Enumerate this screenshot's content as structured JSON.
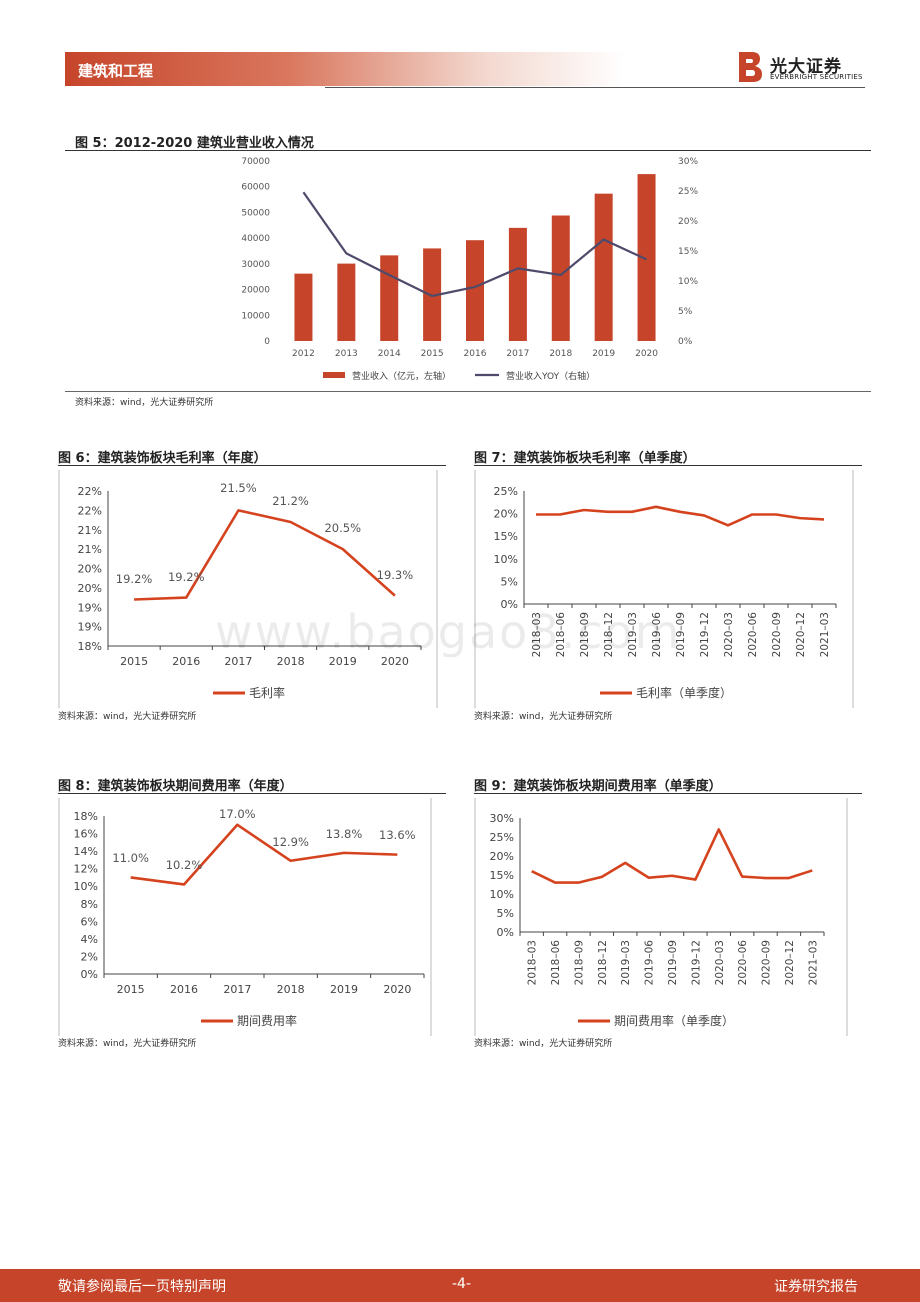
{
  "header": {
    "section": "建筑和工程",
    "brand_cn": "光大证券",
    "brand_en": "EVERBRIGHT SECURITIES"
  },
  "watermark": "www.baogao8.com",
  "fig5": {
    "title": "图 5：2012-2020  建筑业营业收入情况",
    "source": "资料来源：wind，光大证券研究所"
  },
  "fig6": {
    "title": "图 6：建筑装饰板块毛利率（年度）",
    "source": "资料来源：wind，光大证券研究所"
  },
  "fig7": {
    "title": "图 7：建筑装饰板块毛利率（单季度）",
    "source": "资料来源：wind，光大证券研究所"
  },
  "fig8": {
    "title": "图 8：建筑装饰板块期间费用率（年度）",
    "source": "资料来源：wind，光大证券研究所"
  },
  "fig9": {
    "title": "图 9：建筑装饰板块期间费用率（单季度）",
    "source": "资料来源：wind，光大证券研究所"
  },
  "footer": {
    "left": "敬请参阅最后一页特别声明",
    "page": "-4-",
    "right": "证券研究报告"
  },
  "colors": {
    "bar": "#c6452a",
    "line_dark": "#4e4a6b",
    "line_red": "#d5431e"
  },
  "chart_data": [
    {
      "id": "fig5",
      "type": "bar",
      "categories": [
        "2012",
        "2013",
        "2014",
        "2015",
        "2016",
        "2017",
        "2018",
        "2019",
        "2020"
      ],
      "series": [
        {
          "name": "营业收入（亿元，左轴）",
          "type": "bar",
          "axis": "left",
          "values": [
            26200,
            30100,
            33300,
            36000,
            39200,
            44000,
            48800,
            57300,
            64900
          ]
        },
        {
          "name": "营业收入YOY（右轴）",
          "type": "line",
          "axis": "right",
          "values": [
            24.8,
            14.6,
            11.0,
            7.5,
            9.0,
            12.1,
            11.0,
            16.9,
            13.6
          ]
        }
      ],
      "y_left": {
        "min": 0,
        "max": 70000,
        "ticks": [
          "0",
          "10000",
          "20000",
          "30000",
          "40000",
          "50000",
          "60000",
          "70000"
        ]
      },
      "y_right": {
        "min": 0,
        "max": 30,
        "ticks": [
          "0%",
          "5%",
          "10%",
          "15%",
          "20%",
          "25%",
          "30%"
        ]
      },
      "legend": [
        "营业收入（亿元，左轴）",
        "营业收入YOY（右轴）"
      ]
    },
    {
      "id": "fig6",
      "type": "line",
      "categories": [
        "2015",
        "2016",
        "2017",
        "2018",
        "2019",
        "2020"
      ],
      "series": [
        {
          "name": "毛利率",
          "values": [
            19.2,
            19.25,
            21.5,
            21.2,
            20.5,
            19.3
          ],
          "labels": [
            "19.2%",
            "19.2%",
            "21.5%",
            "21.2%",
            "20.5%",
            "19.3%"
          ]
        }
      ],
      "y": {
        "min": 18,
        "max": 22,
        "ticks": [
          "18%",
          "19%",
          "19%",
          "20%",
          "20%",
          "21%",
          "21%",
          "22%",
          "22%"
        ]
      },
      "legend": [
        "毛利率"
      ]
    },
    {
      "id": "fig7",
      "type": "line",
      "categories": [
        "2018–03",
        "2018–06",
        "2018–09",
        "2018–12",
        "2019–03",
        "2019–06",
        "2019–09",
        "2019–12",
        "2020–03",
        "2020–06",
        "2020–09",
        "2020–12",
        "2021–03"
      ],
      "series": [
        {
          "name": "毛利率（单季度）",
          "values": [
            19.8,
            19.8,
            20.8,
            20.4,
            20.4,
            21.5,
            20.4,
            19.6,
            17.4,
            19.8,
            19.8,
            19.0,
            18.7
          ]
        }
      ],
      "y": {
        "min": 0,
        "max": 25,
        "ticks": [
          "0%",
          "5%",
          "10%",
          "15%",
          "20%",
          "25%"
        ]
      },
      "legend": [
        "毛利率（单季度）"
      ]
    },
    {
      "id": "fig8",
      "type": "line",
      "categories": [
        "2015",
        "2016",
        "2017",
        "2018",
        "2019",
        "2020"
      ],
      "series": [
        {
          "name": "期间费用率",
          "values": [
            11.0,
            10.2,
            17.0,
            12.9,
            13.8,
            13.6
          ],
          "labels": [
            "11.0%",
            "10.2%",
            "17.0%",
            "12.9%",
            "13.8%",
            "13.6%"
          ]
        }
      ],
      "y": {
        "min": 0,
        "max": 18,
        "ticks": [
          "0%",
          "2%",
          "4%",
          "6%",
          "8%",
          "10%",
          "12%",
          "14%",
          "16%",
          "18%"
        ]
      },
      "legend": [
        "期间费用率"
      ]
    },
    {
      "id": "fig9",
      "type": "line",
      "categories": [
        "2018–03",
        "2018–06",
        "2018–09",
        "2018–12",
        "2019–03",
        "2019–06",
        "2019–09",
        "2019–12",
        "2020–03",
        "2020–06",
        "2020–09",
        "2020–12",
        "2021–03"
      ],
      "series": [
        {
          "name": "期间费用率（单季度）",
          "values": [
            16.0,
            13.0,
            13.0,
            14.5,
            18.2,
            14.3,
            14.8,
            13.8,
            27.0,
            14.6,
            14.2,
            14.2,
            16.2
          ]
        }
      ],
      "y": {
        "min": 0,
        "max": 30,
        "ticks": [
          "0%",
          "5%",
          "10%",
          "15%",
          "20%",
          "25%",
          "30%"
        ]
      },
      "legend": [
        "期间费用率（单季度）"
      ]
    }
  ]
}
